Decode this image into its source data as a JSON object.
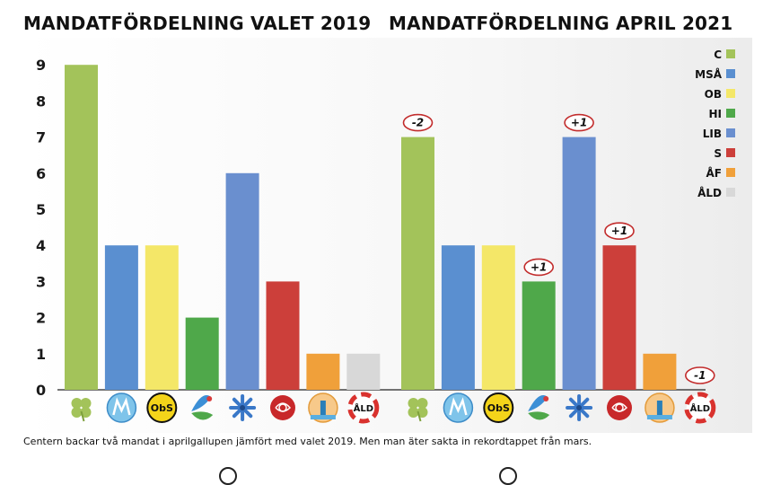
{
  "caption": "Centern backar två mandat i aprilgallupen jämfört med valet 2019. Men man äter sakta in rekordtappet från mars.",
  "chart_data": [
    {
      "type": "bar",
      "title": "MANDATFÖRDELNING VALET 2019",
      "categories": [
        "C",
        "MSÅ",
        "OB",
        "HI",
        "LIB",
        "S",
        "ÅF",
        "ÅLD"
      ],
      "values": [
        9,
        4,
        4,
        2,
        6,
        3,
        1,
        1
      ],
      "ylim": [
        0,
        9
      ],
      "yticks": [
        "0",
        "1",
        "2",
        "3",
        "4",
        "5",
        "6",
        "7",
        "8",
        "9"
      ],
      "grid": false
    },
    {
      "type": "bar",
      "title": "MANDATFÖRDELNING APRIL 2021",
      "categories": [
        "C",
        "MSÅ",
        "OB",
        "HI",
        "LIB",
        "S",
        "ÅF",
        "ÅLD"
      ],
      "values": [
        7,
        4,
        4,
        3,
        7,
        4,
        1,
        0
      ],
      "changes": [
        "-2",
        "",
        "",
        "+1",
        "+1",
        "+1",
        "",
        "-1"
      ],
      "ylim": [
        0,
        9
      ],
      "grid": false
    }
  ],
  "legend": {
    "placement": "top-right",
    "items": [
      {
        "label": "C",
        "color": "#a3c35a"
      },
      {
        "label": "MSÅ",
        "color": "#5a8fd0"
      },
      {
        "label": "OB",
        "color": "#f4e768"
      },
      {
        "label": "HI",
        "color": "#4fa84a"
      },
      {
        "label": "LIB",
        "color": "#6a8fcf"
      },
      {
        "label": "S",
        "color": "#cc3f3a"
      },
      {
        "label": "ÅF",
        "color": "#f0a03a"
      },
      {
        "label": "ÅLD",
        "color": "#d8d8d8"
      }
    ]
  },
  "party_icons": [
    "clover-icon",
    "msa-logo-icon",
    "obs-logo-icon",
    "hi-logo-icon",
    "cornflower-icon",
    "rose-icon",
    "lighthouse-icon",
    "ald-lifebuoy-icon"
  ]
}
